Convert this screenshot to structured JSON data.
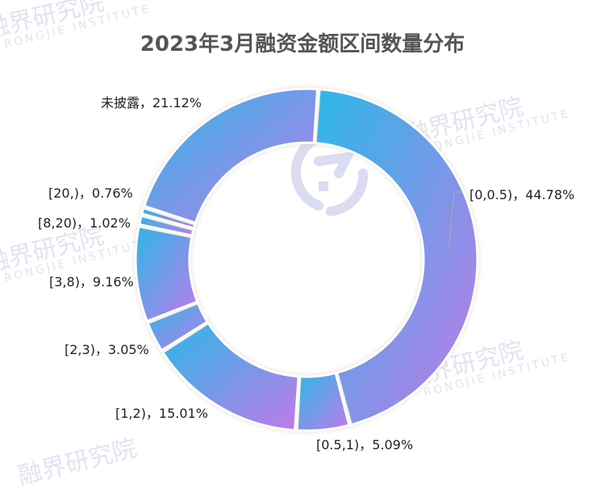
{
  "title": "2023年3月融资金额区间数量分布",
  "watermark": {
    "cn": "融界研究院",
    "en": "RONGJIE INSTITUTE"
  },
  "colors": {
    "gradient_start": "#2bb8e8",
    "gradient_end": "#c07ae8",
    "title": "#555555",
    "label": "#222222"
  },
  "labels": {
    "s0": "[0,0.5)，44.78%",
    "s1": "[0.5,1)，5.09%",
    "s2": "[1,2)，15.01%",
    "s3": "[2,3)，3.05%",
    "s4": "[3,8)，9.16%",
    "s5": "[8,20)，1.02%",
    "s6": "[20,)，0.76%",
    "s7": "未披露，21.12%"
  },
  "chart_data": {
    "type": "pie",
    "variant": "donut",
    "title": "2023年3月融资金额区间数量分布",
    "categories": [
      "[0,0.5)",
      "[0.5,1)",
      "[1,2)",
      "[2,3)",
      "[3,8)",
      "[8,20)",
      "[20,)",
      "未披露"
    ],
    "values": [
      44.78,
      5.09,
      15.01,
      3.05,
      9.16,
      1.02,
      0.76,
      21.12
    ],
    "unit": "%",
    "legend": "none",
    "labels_outside": true
  }
}
